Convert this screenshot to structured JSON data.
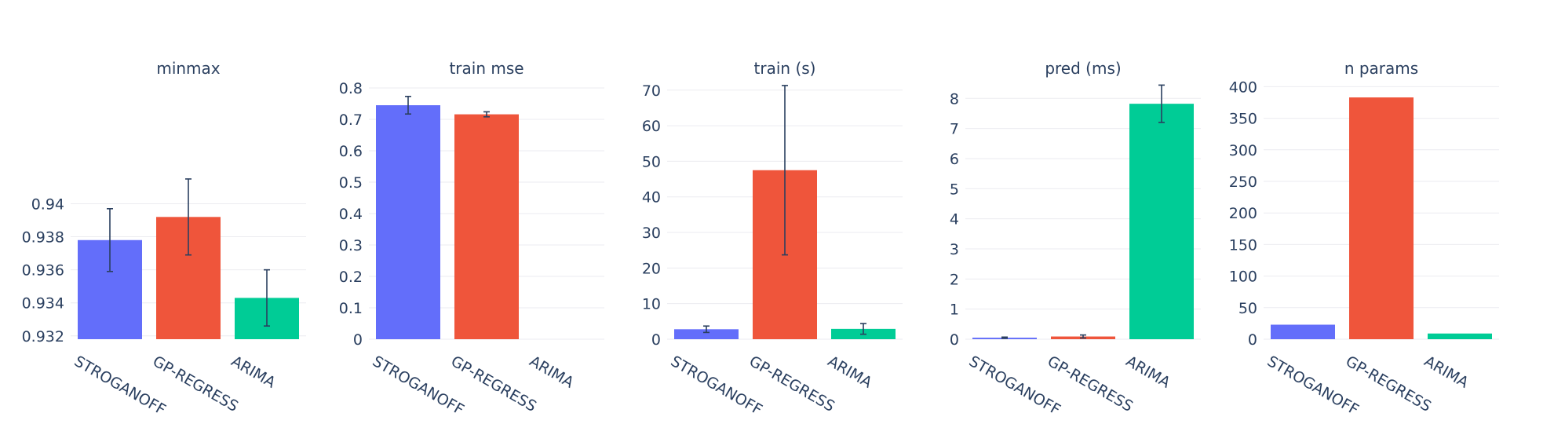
{
  "chart_data": [
    {
      "type": "bar",
      "title": "minmax",
      "categories": [
        "STROGANOFF",
        "GP-REGRESS",
        "ARIMA"
      ],
      "values": [
        0.9378,
        0.9392,
        0.9343
      ],
      "error": [
        0.0019,
        0.0023,
        0.0017
      ],
      "ylim": [
        0.9318,
        0.9472
      ],
      "yticks": [
        0.932,
        0.934,
        0.936,
        0.938,
        0.94
      ],
      "ytick_labels": [
        "0.932",
        "0.934",
        "0.936",
        "0.938",
        "0.94"
      ],
      "grid": true
    },
    {
      "type": "bar",
      "title": "train mse",
      "categories": [
        "STROGANOFF",
        "GP-REGRESS",
        "ARIMA"
      ],
      "values": [
        0.745,
        0.716,
        0.0
      ],
      "error": [
        0.028,
        0.008,
        0.0
      ],
      "ylim": [
        0,
        0.81
      ],
      "yticks": [
        0,
        0.1,
        0.2,
        0.3,
        0.4,
        0.5,
        0.6,
        0.7,
        0.8
      ],
      "ytick_labels": [
        "0",
        "0.1",
        "0.2",
        "0.3",
        "0.4",
        "0.5",
        "0.6",
        "0.7",
        "0.8"
      ],
      "grid": true
    },
    {
      "type": "bar",
      "title": "train (s)",
      "categories": [
        "STROGANOFF",
        "GP-REGRESS",
        "ARIMA"
      ],
      "values": [
        2.8,
        47.5,
        2.9
      ],
      "error": [
        0.9,
        23.8,
        1.5
      ],
      "ylim": [
        0,
        71.5
      ],
      "yticks": [
        0,
        10,
        20,
        30,
        40,
        50,
        60,
        70
      ],
      "ytick_labels": [
        "0",
        "10",
        "20",
        "30",
        "40",
        "50",
        "60",
        "70"
      ],
      "grid": true
    },
    {
      "type": "bar",
      "title": "pred (ms)",
      "categories": [
        "STROGANOFF",
        "GP-REGRESS",
        "ARIMA"
      ],
      "values": [
        0.05,
        0.09,
        7.82
      ],
      "error": [
        0.02,
        0.05,
        0.62
      ],
      "ylim": [
        0,
        8.45
      ],
      "yticks": [
        0,
        1,
        2,
        3,
        4,
        5,
        6,
        7,
        8
      ],
      "ytick_labels": [
        "0",
        "1",
        "2",
        "3",
        "4",
        "5",
        "6",
        "7",
        "8"
      ],
      "grid": true
    },
    {
      "type": "bar",
      "title": "n params",
      "categories": [
        "STROGANOFF",
        "GP-REGRESS",
        "ARIMA"
      ],
      "values": [
        23,
        383,
        9
      ],
      "error": [
        0,
        0,
        0
      ],
      "ylim": [
        0,
        403
      ],
      "yticks": [
        0,
        50,
        100,
        150,
        200,
        250,
        300,
        350,
        400
      ],
      "ytick_labels": [
        "0",
        "50",
        "100",
        "150",
        "200",
        "250",
        "300",
        "350",
        "400"
      ],
      "grid": true
    }
  ],
  "colors": {
    "STROGANOFF": "#636efa",
    "GP-REGRESS": "#ef553b",
    "ARIMA": "#00cc96"
  }
}
